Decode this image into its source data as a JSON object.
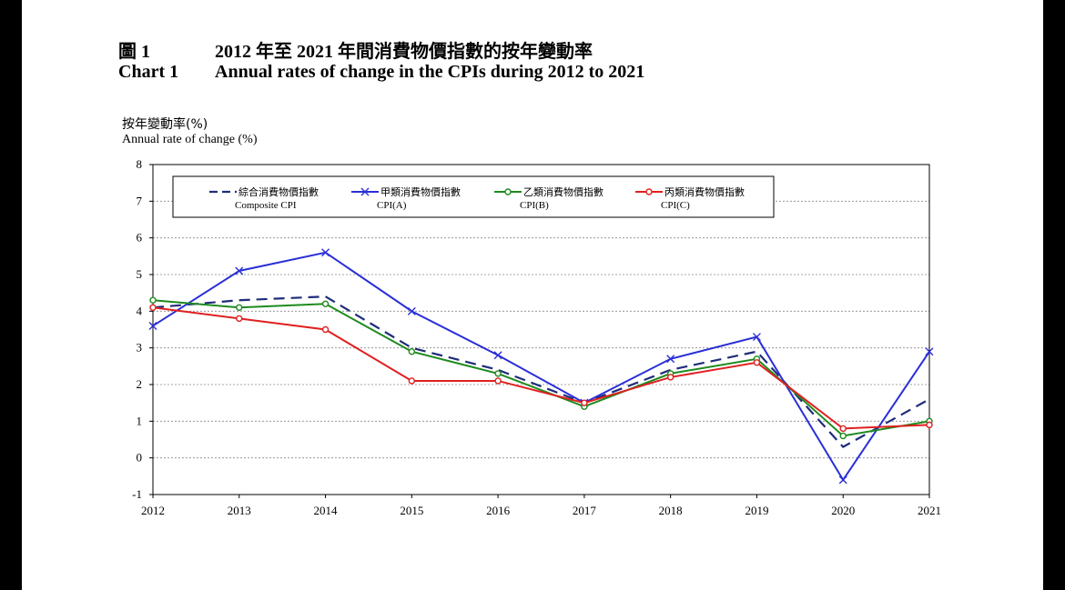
{
  "header": {
    "label_zh": "圖 1",
    "title_zh": "2012 年至 2021 年間消費物價指數的按年變動率",
    "label_en": "Chart 1",
    "title_en": "Annual rates of change in the CPIs during 2012 to 2021"
  },
  "chart_data": {
    "type": "line",
    "ylabel_zh": "按年變動率(%)",
    "ylabel_en": "Annual rate of change (%)",
    "x": [
      "2012",
      "2013",
      "2014",
      "2015",
      "2016",
      "2017",
      "2018",
      "2019",
      "2020",
      "2021"
    ],
    "ylim": [
      -1,
      8
    ],
    "yticks": [
      "8",
      "7",
      "6",
      "5",
      "4",
      "3",
      "2",
      "1",
      "0",
      "-1"
    ],
    "grid": true,
    "legend_position": "top",
    "series": [
      {
        "name_zh": "綜合消費物價指數",
        "name_en": "Composite CPI",
        "color": "#1f2d7a",
        "style": "dashed",
        "marker": "none",
        "values": [
          4.1,
          4.3,
          4.4,
          3.0,
          2.4,
          1.5,
          2.4,
          2.9,
          0.3,
          1.6
        ]
      },
      {
        "name_zh": "甲類消費物價指數",
        "name_en": "CPI(A)",
        "color": "#2a2fd6",
        "style": "solid",
        "marker": "x",
        "values": [
          3.6,
          5.1,
          5.6,
          4.0,
          2.8,
          1.5,
          2.7,
          3.3,
          -0.6,
          2.9
        ]
      },
      {
        "name_zh": "乙類消費物價指數",
        "name_en": "CPI(B)",
        "color": "#1e8a1e",
        "style": "solid",
        "marker": "circle",
        "values": [
          4.3,
          4.1,
          4.2,
          2.9,
          2.3,
          1.4,
          2.3,
          2.7,
          0.6,
          1.0
        ]
      },
      {
        "name_zh": "丙類消費物價指數",
        "name_en": "CPI(C)",
        "color": "#e02020",
        "style": "solid",
        "marker": "circle",
        "values": [
          4.1,
          3.8,
          3.5,
          2.1,
          2.1,
          1.5,
          2.2,
          2.6,
          0.8,
          0.9
        ]
      }
    ]
  }
}
